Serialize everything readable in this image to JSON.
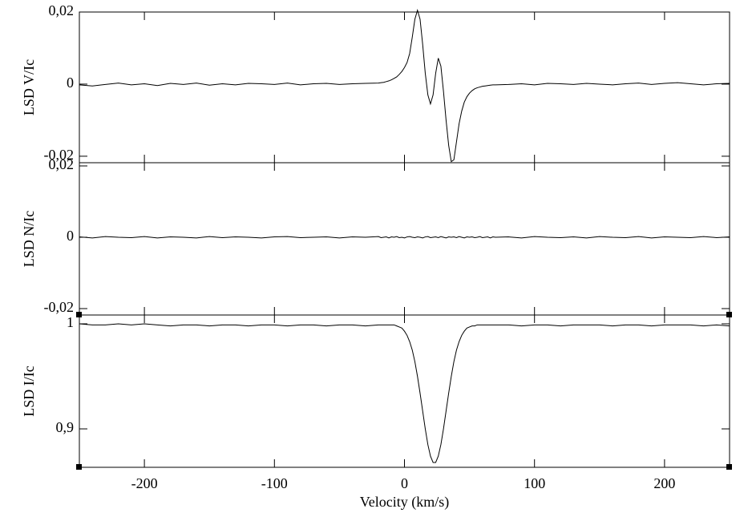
{
  "chart_data": [
    {
      "type": "line",
      "ylabel": "LSD V/Ic",
      "x": [
        -250,
        -240,
        -230,
        -220,
        -210,
        -200,
        -190,
        -180,
        -170,
        -160,
        -150,
        -140,
        -130,
        -120,
        -110,
        -100,
        -90,
        -80,
        -70,
        -60,
        -50,
        -40,
        -30,
        -20,
        -18,
        -16,
        -14,
        -12,
        -10,
        -8,
        -6,
        -4,
        -2,
        0,
        2,
        4,
        6,
        8,
        10,
        12,
        14,
        16,
        18,
        20,
        22,
        24,
        26,
        28,
        30,
        32,
        34,
        36,
        38,
        40,
        42,
        44,
        46,
        48,
        50,
        52,
        54,
        56,
        58,
        60,
        62,
        64,
        66,
        68,
        70,
        80,
        90,
        100,
        110,
        120,
        130,
        140,
        150,
        160,
        170,
        180,
        190,
        200,
        210,
        220,
        230,
        240,
        250
      ],
      "series": [
        {
          "color": "#000000",
          "values": [
            -0.0002,
            -0.0005,
            -0.0001,
            0.0003,
            -0.0002,
            0.0001,
            -0.0004,
            0.0002,
            -0.0001,
            0.0003,
            -0.0003,
            0.0001,
            -0.0002,
            0.0002,
            0.0001,
            -0.0001,
            0.0003,
            -0.0002,
            0.0001,
            0.0002,
            -0.0001,
            0.0001,
            0.0002,
            0.0003,
            0.0004,
            0.0005,
            0.0007,
            0.0009,
            0.0012,
            0.0016,
            0.002,
            0.0027,
            0.0035,
            0.0046,
            0.006,
            0.0085,
            0.013,
            0.018,
            0.0205,
            0.018,
            0.011,
            0.003,
            -0.003,
            -0.0055,
            -0.003,
            0.003,
            0.0072,
            0.005,
            -0.002,
            -0.01,
            -0.017,
            -0.0215,
            -0.021,
            -0.016,
            -0.011,
            -0.0075,
            -0.005,
            -0.0035,
            -0.0025,
            -0.0018,
            -0.0013,
            -0.001,
            -0.0008,
            -0.0006,
            -0.0005,
            -0.0004,
            -0.0003,
            -0.0002,
            -0.0002,
            -0.0001,
            0.0001,
            -0.0002,
            0.0002,
            0.0001,
            -0.0001,
            0.0002,
            0,
            -0.0002,
            0.0001,
            0.0003,
            -0.0001,
            0.0002,
            0.0004,
            0.0001,
            -0.0002,
            0.0001,
            0.0002
          ]
        }
      ],
      "xlim": [
        -250,
        250
      ],
      "ylim": [
        -0.0218,
        0.02
      ],
      "yticks": [
        {
          "value": 0.02,
          "label": "0,02"
        },
        0,
        {
          "value": -0.02,
          "label": "-0,02"
        }
      ]
    },
    {
      "type": "line",
      "ylabel": "LSD N/Ic",
      "x": [
        -250,
        -240,
        -230,
        -220,
        -210,
        -200,
        -190,
        -180,
        -170,
        -160,
        -150,
        -140,
        -130,
        -120,
        -110,
        -100,
        -90,
        -80,
        -70,
        -60,
        -50,
        -40,
        -30,
        -20,
        -18,
        -16,
        -14,
        -12,
        -10,
        -8,
        -6,
        -4,
        -2,
        0,
        2,
        4,
        6,
        8,
        10,
        12,
        14,
        16,
        18,
        20,
        22,
        24,
        26,
        28,
        30,
        32,
        34,
        36,
        38,
        40,
        42,
        44,
        46,
        48,
        50,
        52,
        54,
        56,
        58,
        60,
        62,
        64,
        66,
        68,
        70,
        80,
        90,
        100,
        110,
        120,
        130,
        140,
        150,
        160,
        170,
        180,
        190,
        200,
        210,
        220,
        230,
        240,
        250
      ],
      "series": [
        {
          "color": "#000000",
          "values": [
            0.0001,
            -0.0002,
            0.0002,
            0,
            -0.0001,
            0.0002,
            -0.0002,
            0.0001,
            0,
            -0.0002,
            0.0002,
            -0.0001,
            0.0001,
            0,
            -0.0002,
            0.0001,
            0.0002,
            -0.0001,
            0,
            0.0001,
            -0.0002,
            0.0001,
            0,
            0.0002,
            -0.0001,
            0,
            0.0001,
            -0.0002,
            0.0001,
            0,
            0.0002,
            -0.0001,
            0,
            -0.0002,
            0.0001,
            0.0002,
            0,
            -0.0001,
            0.0001,
            0,
            -0.0002,
            0.0001,
            0.0002,
            -0.0001,
            0,
            0.0001,
            -0.0001,
            0.0002,
            0,
            -0.0002,
            0.0001,
            0,
            0.0001,
            -0.0001,
            0.0002,
            0,
            -0.0002,
            0.0001,
            0,
            0.0001,
            -0.0001,
            0,
            0.0002,
            -0.0001,
            0,
            0.0001,
            -0.0002,
            0.0001,
            0,
            0.0001,
            -0.0002,
            0.0002,
            0,
            -0.0001,
            0.0001,
            -0.0002,
            0.0002,
            0,
            -0.0001,
            0.0002,
            -0.0002,
            0.0001,
            0,
            -0.0001,
            0.0002,
            -0.0001,
            0.0001
          ]
        }
      ],
      "xlim": [
        -250,
        250
      ],
      "ylim": [
        -0.0218,
        0.0209
      ],
      "yticks": [
        {
          "value": 0.02,
          "label": "0,02"
        },
        0,
        {
          "value": -0.02,
          "label": "-0,02"
        }
      ]
    },
    {
      "type": "line",
      "ylabel": "LSD I/Ic",
      "xlabel": "Velocity (km/s)",
      "x": [
        -250,
        -240,
        -230,
        -220,
        -210,
        -200,
        -190,
        -180,
        -170,
        -160,
        -150,
        -140,
        -130,
        -120,
        -110,
        -100,
        -90,
        -80,
        -70,
        -60,
        -50,
        -40,
        -30,
        -20,
        -18,
        -16,
        -14,
        -12,
        -10,
        -8,
        -6,
        -4,
        -2,
        0,
        2,
        4,
        6,
        8,
        10,
        12,
        14,
        16,
        18,
        20,
        22,
        24,
        26,
        28,
        30,
        32,
        34,
        36,
        38,
        40,
        42,
        44,
        46,
        48,
        50,
        52,
        54,
        56,
        58,
        60,
        62,
        64,
        66,
        68,
        70,
        80,
        90,
        100,
        110,
        120,
        130,
        140,
        150,
        160,
        170,
        180,
        190,
        200,
        210,
        220,
        230,
        240,
        250
      ],
      "series": [
        {
          "color": "#000000",
          "values": [
            1,
            0.999,
            0.999,
            1,
            0.999,
            1,
            0.999,
            0.998,
            0.999,
            0.999,
            0.998,
            0.999,
            0.999,
            0.998,
            0.999,
            0.999,
            0.998,
            0.999,
            0.999,
            0.998,
            0.999,
            0.999,
            0.998,
            0.999,
            0.999,
            0.999,
            0.999,
            0.999,
            0.999,
            0.999,
            0.998,
            0.997,
            0.996,
            0.993,
            0.989,
            0.983,
            0.975,
            0.964,
            0.95,
            0.934,
            0.917,
            0.9,
            0.885,
            0.874,
            0.868,
            0.868,
            0.874,
            0.885,
            0.9,
            0.917,
            0.934,
            0.95,
            0.964,
            0.975,
            0.983,
            0.989,
            0.993,
            0.996,
            0.997,
            0.998,
            0.998,
            0.999,
            0.999,
            0.999,
            0.999,
            0.999,
            0.999,
            0.999,
            0.999,
            0.999,
            0.998,
            0.999,
            0.999,
            0.998,
            0.999,
            0.999,
            0.999,
            0.998,
            0.999,
            0.999,
            0.998,
            0.999,
            0.999,
            0.999,
            0.998,
            0.999,
            0.998
          ]
        }
      ],
      "xlim": [
        -250,
        250
      ],
      "ylim": [
        0.8634,
        1.0084
      ],
      "xticks": [
        -200,
        -100,
        0,
        100,
        200
      ],
      "yticks": [
        1,
        {
          "value": 0.9,
          "label": "0,9"
        }
      ]
    }
  ]
}
